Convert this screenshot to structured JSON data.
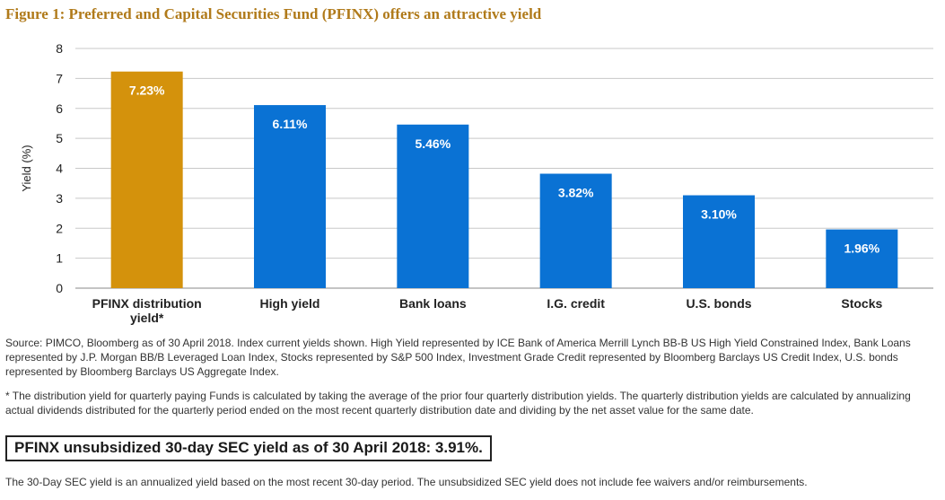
{
  "figure": {
    "title": "Figure 1: Preferred and Capital Securities Fund (PFINX) offers an attractive yield"
  },
  "chart_data": {
    "type": "bar",
    "categories": [
      "PFINX distribution yield*",
      "High yield",
      "Bank loans",
      "I.G. credit",
      "U.S. bonds",
      "Stocks"
    ],
    "category_lines": [
      [
        "PFINX distribution",
        "yield*"
      ],
      [
        "High yield"
      ],
      [
        "Bank loans"
      ],
      [
        "I.G. credit"
      ],
      [
        "U.S. bonds"
      ],
      [
        "Stocks"
      ]
    ],
    "values": [
      7.23,
      6.11,
      5.46,
      3.82,
      3.1,
      1.96
    ],
    "data_labels": [
      "7.23%",
      "6.11%",
      "5.46%",
      "3.82%",
      "3.10%",
      "1.96%"
    ],
    "bar_colors": [
      "#d4920c",
      "#0a72d4",
      "#0a72d4",
      "#0a72d4",
      "#0a72d4",
      "#0a72d4"
    ],
    "ylabel": "Yield (%)",
    "xlabel": "",
    "ylim": [
      0,
      8
    ],
    "yticks": [
      0,
      1,
      2,
      3,
      4,
      5,
      6,
      7,
      8
    ],
    "grid": true
  },
  "notes": {
    "source": "Source: PIMCO, Bloomberg as of 30 April 2018. Index current yields shown. High Yield represented by ICE Bank of America Merrill Lynch BB-B US High Yield Constrained Index, Bank Loans represented by J.P. Morgan BB/B Leveraged Loan Index, Stocks represented by S&P 500 Index, Investment Grade Credit represented by Bloomberg Barclays US Credit Index, U.S. bonds represented by Bloomberg Barclays US Aggregate Index.",
    "footnote": "* The distribution yield for quarterly paying Funds is calculated by taking the average of the prior four quarterly distribution yields. The quarterly distribution yields are calculated by annualizing actual dividends distributed for the quarterly period ended on the most recent quarterly distribution date and dividing by the net asset value for the same date.",
    "sec_yield": "PFINX unsubsidized 30-day SEC yield as of 30 April 2018: 3.91%.",
    "sec_note": "The 30-Day SEC yield is an annualized yield based on the most recent 30-day period. The unsubsidized SEC yield does not include fee waivers and/or reimbursements."
  }
}
